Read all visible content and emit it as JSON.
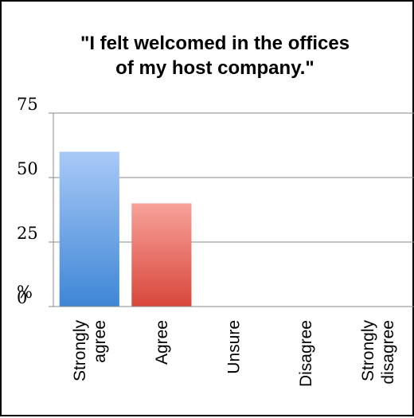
{
  "chart_data": {
    "type": "bar",
    "title_lines": [
      "\"I felt welcomed in the offices",
      "of my host company.\""
    ],
    "y_unit": "%",
    "ylim": [
      0,
      75
    ],
    "yticks": [
      0,
      25,
      50,
      75
    ],
    "grid": true,
    "categories": [
      [
        "Strongly",
        "agree"
      ],
      [
        "Agree"
      ],
      [
        "Unsure"
      ],
      [
        "Disagree"
      ],
      [
        "Strongly",
        "disagree"
      ]
    ],
    "values": [
      60,
      40,
      0,
      0,
      0
    ],
    "bar_colors": [
      [
        "#a9c9f7",
        "#3e86d6"
      ],
      [
        "#f7a29a",
        "#d9473b"
      ],
      [
        "#a9c9f7",
        "#3e86d6"
      ],
      [
        "#a9c9f7",
        "#3e86d6"
      ],
      [
        "#a9c9f7",
        "#3e86d6"
      ]
    ]
  }
}
